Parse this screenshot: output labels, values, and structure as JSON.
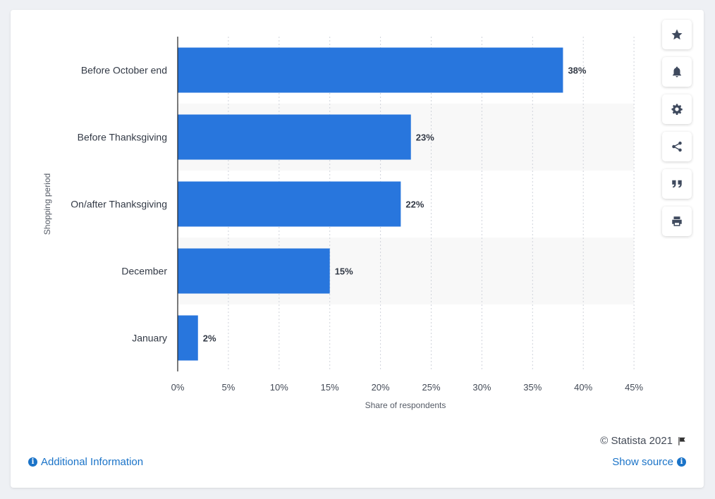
{
  "chart_data": {
    "type": "bar",
    "orientation": "horizontal",
    "categories": [
      "Before October end",
      "Before Thanksgiving",
      "On/after Thanksgiving",
      "December",
      "January"
    ],
    "values": [
      38,
      23,
      22,
      15,
      2
    ],
    "value_labels": [
      "38%",
      "23%",
      "22%",
      "15%",
      "2%"
    ],
    "xlabel": "Share of respondents",
    "ylabel": "Shopping period",
    "xlim": [
      0,
      45
    ],
    "xticks": [
      0,
      5,
      10,
      15,
      20,
      25,
      30,
      35,
      40,
      45
    ],
    "xtick_labels": [
      "0%",
      "5%",
      "10%",
      "15%",
      "20%",
      "25%",
      "30%",
      "35%",
      "40%",
      "45%"
    ],
    "grid": "vertical-dashed",
    "bar_color": "#2876dd",
    "band_color": "#f8f8f8"
  },
  "toolbar": {
    "items": [
      {
        "name": "star-icon"
      },
      {
        "name": "bell-icon"
      },
      {
        "name": "gear-icon"
      },
      {
        "name": "share-icon"
      },
      {
        "name": "quote-icon"
      },
      {
        "name": "print-icon"
      }
    ]
  },
  "footer": {
    "credit": "© Statista 2021",
    "additional_info": "Additional Information",
    "show_source": "Show source"
  }
}
